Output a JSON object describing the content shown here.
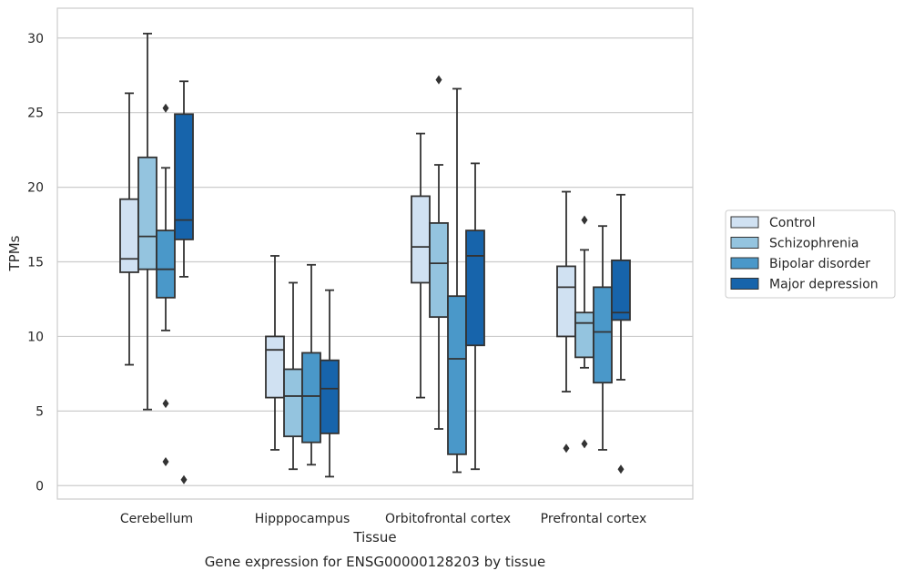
{
  "caption": "Gene expression for ENSG00000128203 by tissue",
  "chart_data": {
    "type": "boxplot",
    "xlabel": "Tissue",
    "ylabel": "TPMs",
    "ylim": [
      -0.9,
      32
    ],
    "yticks": [
      0,
      5,
      10,
      15,
      20,
      25,
      30
    ],
    "grid": "horizontal",
    "legend_position": "right-outside",
    "categories": [
      "Cerebellum",
      "Hipppocampus",
      "Orbitofrontal cortex",
      "Prefrontal cortex"
    ],
    "series": [
      {
        "name": "Control",
        "color": "#d0e1f2",
        "boxes": [
          {
            "whislo": 8.1,
            "q1": 14.3,
            "med": 15.2,
            "q3": 19.2,
            "whishi": 26.3,
            "fliers": []
          },
          {
            "whislo": 2.4,
            "q1": 5.9,
            "med": 9.1,
            "q3": 10.0,
            "whishi": 15.4,
            "fliers": []
          },
          {
            "whislo": 5.9,
            "q1": 13.6,
            "med": 16.0,
            "q3": 19.4,
            "whishi": 23.6,
            "fliers": []
          },
          {
            "whislo": 6.3,
            "q1": 10.0,
            "med": 13.3,
            "q3": 14.7,
            "whishi": 19.7,
            "fliers": [
              2.5
            ]
          }
        ]
      },
      {
        "name": "Schizophrenia",
        "color": "#94c4df",
        "boxes": [
          {
            "whislo": 5.1,
            "q1": 14.5,
            "med": 16.7,
            "q3": 22.0,
            "whishi": 30.3,
            "fliers": []
          },
          {
            "whislo": 1.1,
            "q1": 3.3,
            "med": 6.0,
            "q3": 7.8,
            "whishi": 13.6,
            "fliers": []
          },
          {
            "whislo": 3.8,
            "q1": 11.3,
            "med": 14.9,
            "q3": 17.6,
            "whishi": 21.5,
            "fliers": [
              27.2
            ]
          },
          {
            "whislo": 7.9,
            "q1": 8.6,
            "med": 10.9,
            "q3": 11.6,
            "whishi": 15.8,
            "fliers": [
              17.8,
              2.8
            ]
          }
        ]
      },
      {
        "name": "Bipolar disorder",
        "color": "#4a98c9",
        "boxes": [
          {
            "whislo": 10.4,
            "q1": 12.6,
            "med": 14.5,
            "q3": 17.1,
            "whishi": 21.3,
            "fliers": [
              25.3,
              5.5,
              1.6
            ]
          },
          {
            "whislo": 1.4,
            "q1": 2.9,
            "med": 6.0,
            "q3": 8.9,
            "whishi": 14.8,
            "fliers": []
          },
          {
            "whislo": 0.9,
            "q1": 2.1,
            "med": 8.5,
            "q3": 12.7,
            "whishi": 26.6,
            "fliers": []
          },
          {
            "whislo": 2.4,
            "q1": 6.9,
            "med": 10.3,
            "q3": 13.3,
            "whishi": 17.4,
            "fliers": []
          }
        ]
      },
      {
        "name": "Major depression",
        "color": "#1764ab",
        "boxes": [
          {
            "whislo": 14.0,
            "q1": 16.5,
            "med": 17.8,
            "q3": 24.9,
            "whishi": 27.1,
            "fliers": [
              0.4
            ]
          },
          {
            "whislo": 0.6,
            "q1": 3.5,
            "med": 6.5,
            "q3": 8.4,
            "whishi": 13.1,
            "fliers": []
          },
          {
            "whislo": 1.1,
            "q1": 9.4,
            "med": 15.4,
            "q3": 17.1,
            "whishi": 21.6,
            "fliers": []
          },
          {
            "whislo": 7.1,
            "q1": 11.1,
            "med": 11.6,
            "q3": 15.1,
            "whishi": 19.5,
            "fliers": [
              1.1
            ]
          }
        ]
      }
    ]
  }
}
